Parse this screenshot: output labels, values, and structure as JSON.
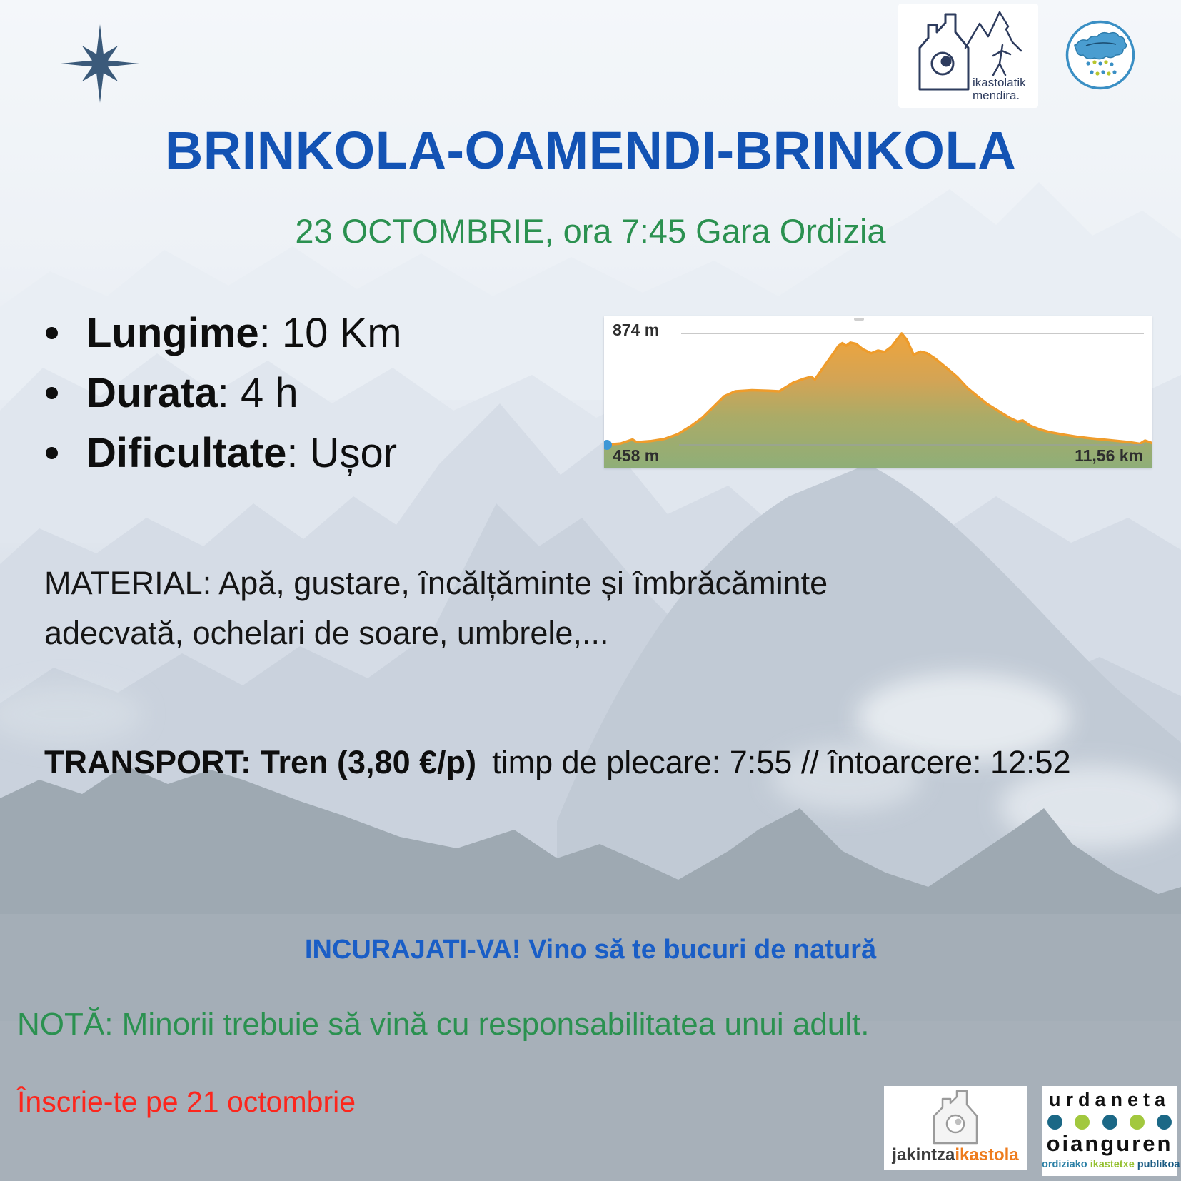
{
  "colors": {
    "title_blue": "#1353b4",
    "subtitle_green": "#2b9150",
    "encourage_blue": "#1a5ec6",
    "signup_red": "#fc261d",
    "body_text": "#151515",
    "chart_line_orange": "#ef9c2b",
    "chart_start_dot_blue": "#3e97d6",
    "star_navy": "#3b5a7a",
    "jakintza_orange": "#ee7c1e",
    "urdaneta_teal": "#1b6886",
    "urdaneta_green": "#a2c83e"
  },
  "header": {
    "title": "BRINKOLA-OAMENDI-BRINKOLA",
    "subtitle": "23 OCTOMBRIE, ora 7:45 Gara Ordizia"
  },
  "details": {
    "separator": ": ",
    "items": [
      {
        "label": "Lungime",
        "value": "10 Km"
      },
      {
        "label": "Durata",
        "value": "4 h"
      },
      {
        "label": "Dificultate",
        "value": "Ușor"
      }
    ]
  },
  "material": {
    "line1": "MATERIAL: Apă, gustare, încălțăminte și îmbrăcăminte",
    "line2": "adecvată, ochelari de soare, umbrele,..."
  },
  "transport": {
    "bold": "TRANSPORT: Tren (3,80 €/p)",
    "rest": "timp de plecare: 7:55 // întoarcere: 12:52"
  },
  "footer": {
    "encourage": "INCURAJATI-VA! Vino să te bucuri de natură",
    "note": "NOTĂ: Minorii trebuie să vină cu responsabilitatea unui adult.",
    "signup": "Înscrie-te pe 21 octombrie"
  },
  "logos": {
    "ikastolatik_mendira": {
      "line1": "ikastolatik",
      "line2": "mendira."
    },
    "jakintza": {
      "part1": "jakintza",
      "part2": "ikastola"
    },
    "urdaneta": {
      "line1": "urdaneta",
      "line2": "oianguren",
      "sub1": "ordiziako",
      "sub2": "ikastetxe",
      "sub3": "publikoa"
    }
  },
  "chart_data": {
    "type": "area",
    "max_elevation_label": "874 m",
    "min_elevation_label": "458 m",
    "end_distance_label": "11,56 km",
    "ylim": [
      458,
      874
    ],
    "xlim_km": [
      0,
      11.56
    ],
    "grid": "min-max horizontal lines only",
    "x_km": [
      0,
      0.35,
      0.6,
      0.69,
      0.98,
      1.27,
      1.56,
      1.85,
      2.08,
      2.31,
      2.54,
      2.77,
      3.12,
      3.47,
      3.7,
      3.99,
      4.22,
      4.37,
      4.45,
      4.62,
      4.8,
      4.95,
      5.03,
      5.11,
      5.2,
      5.32,
      5.46,
      5.64,
      5.78,
      5.92,
      6.07,
      6.28,
      6.39,
      6.53,
      6.68,
      6.82,
      6.99,
      7.23,
      7.46,
      7.66,
      7.88,
      8.09,
      8.32,
      8.55,
      8.73,
      8.84,
      8.99,
      9.19,
      9.42,
      9.71,
      10.0,
      10.29,
      10.58,
      10.87,
      11.1,
      11.31,
      11.42,
      11.56
    ],
    "elevation_m": [
      458,
      463,
      478,
      468,
      472,
      480,
      498,
      530,
      560,
      600,
      640,
      658,
      662,
      660,
      658,
      690,
      705,
      712,
      702,
      745,
      790,
      828,
      838,
      828,
      840,
      835,
      815,
      800,
      810,
      805,
      825,
      874,
      850,
      795,
      806,
      800,
      780,
      745,
      710,
      672,
      640,
      610,
      585,
      560,
      545,
      549,
      530,
      516,
      505,
      496,
      488,
      482,
      477,
      472,
      468,
      462,
      474,
      465
    ]
  }
}
